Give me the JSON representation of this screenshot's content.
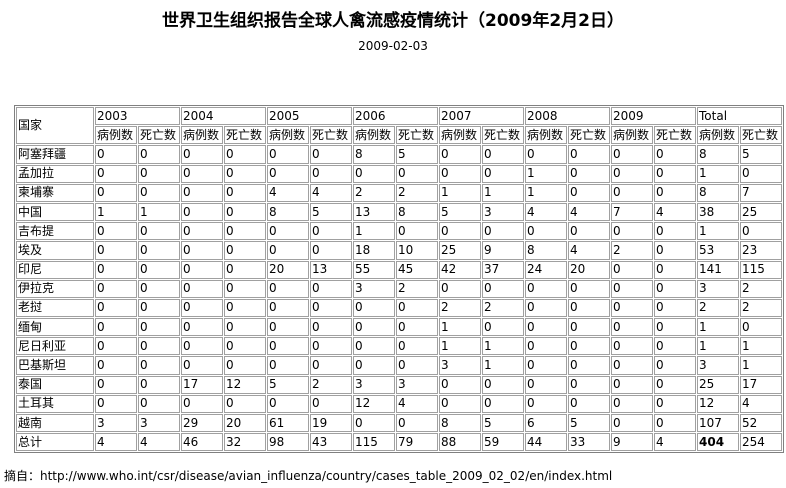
{
  "title": "世界卫生组织报告全球人禽流感疫情统计（2009年2月2日）",
  "date": "2009-02-03",
  "table": {
    "header": [
      "国家",
      "2003",
      "2004",
      "2005",
      "2006",
      "2007",
      "2008",
      "2009",
      "Total"
    ],
    "subheader": [
      "病例数",
      "死亡数",
      "病例数",
      "死亡数",
      "病例数",
      "死亡数",
      "病例数",
      "死亡数",
      "病例数",
      "死亡数",
      "病例数",
      "死亡数",
      "病例数",
      "死亡数",
      "病例数",
      "死亡数"
    ],
    "rows": [
      [
        "阿塞拜疆",
        0,
        0,
        0,
        0,
        0,
        0,
        8,
        5,
        0,
        0,
        0,
        0,
        0,
        0,
        8,
        5
      ],
      [
        "孟加拉",
        0,
        0,
        0,
        0,
        0,
        0,
        0,
        0,
        0,
        0,
        1,
        0,
        0,
        0,
        1,
        0
      ],
      [
        "柬埔寨",
        0,
        0,
        0,
        0,
        4,
        4,
        2,
        2,
        1,
        1,
        1,
        0,
        0,
        0,
        8,
        7
      ],
      [
        "中国",
        1,
        1,
        0,
        0,
        8,
        5,
        13,
        8,
        5,
        3,
        4,
        4,
        7,
        4,
        38,
        25
      ],
      [
        "吉布提",
        0,
        0,
        0,
        0,
        0,
        0,
        1,
        0,
        0,
        0,
        0,
        0,
        0,
        0,
        1,
        0
      ],
      [
        "埃及",
        0,
        0,
        0,
        0,
        0,
        0,
        18,
        10,
        25,
        9,
        8,
        4,
        2,
        0,
        53,
        23
      ],
      [
        "印尼",
        0,
        0,
        0,
        0,
        20,
        13,
        55,
        45,
        42,
        37,
        24,
        20,
        0,
        0,
        141,
        115
      ],
      [
        "伊拉克",
        0,
        0,
        0,
        0,
        0,
        0,
        3,
        2,
        0,
        0,
        0,
        0,
        0,
        0,
        3,
        2
      ],
      [
        "老挝",
        0,
        0,
        0,
        0,
        0,
        0,
        0,
        0,
        2,
        2,
        0,
        0,
        0,
        0,
        2,
        2
      ],
      [
        "缅甸",
        0,
        0,
        0,
        0,
        0,
        0,
        0,
        0,
        1,
        0,
        0,
        0,
        0,
        0,
        1,
        0
      ],
      [
        "尼日利亚",
        0,
        0,
        0,
        0,
        0,
        0,
        0,
        0,
        1,
        1,
        0,
        0,
        0,
        0,
        1,
        1
      ],
      [
        "巴基斯坦",
        0,
        0,
        0,
        0,
        0,
        0,
        0,
        0,
        3,
        1,
        0,
        0,
        0,
        0,
        3,
        1
      ],
      [
        "泰国",
        0,
        0,
        17,
        12,
        5,
        2,
        3,
        3,
        0,
        0,
        0,
        0,
        0,
        0,
        25,
        17
      ],
      [
        "土耳其",
        0,
        0,
        0,
        0,
        0,
        0,
        12,
        4,
        0,
        0,
        0,
        0,
        0,
        0,
        12,
        4
      ],
      [
        "越南",
        3,
        3,
        29,
        20,
        61,
        19,
        0,
        0,
        8,
        5,
        6,
        5,
        0,
        0,
        107,
        52
      ],
      [
        "总计",
        4,
        4,
        46,
        32,
        98,
        43,
        115,
        79,
        88,
        59,
        44,
        33,
        9,
        4,
        404,
        254
      ]
    ]
  },
  "source": "摘自：http://www.who.int/csr/disease/avian_influenza/country/cases_table_2009_02_02/en/index.html"
}
